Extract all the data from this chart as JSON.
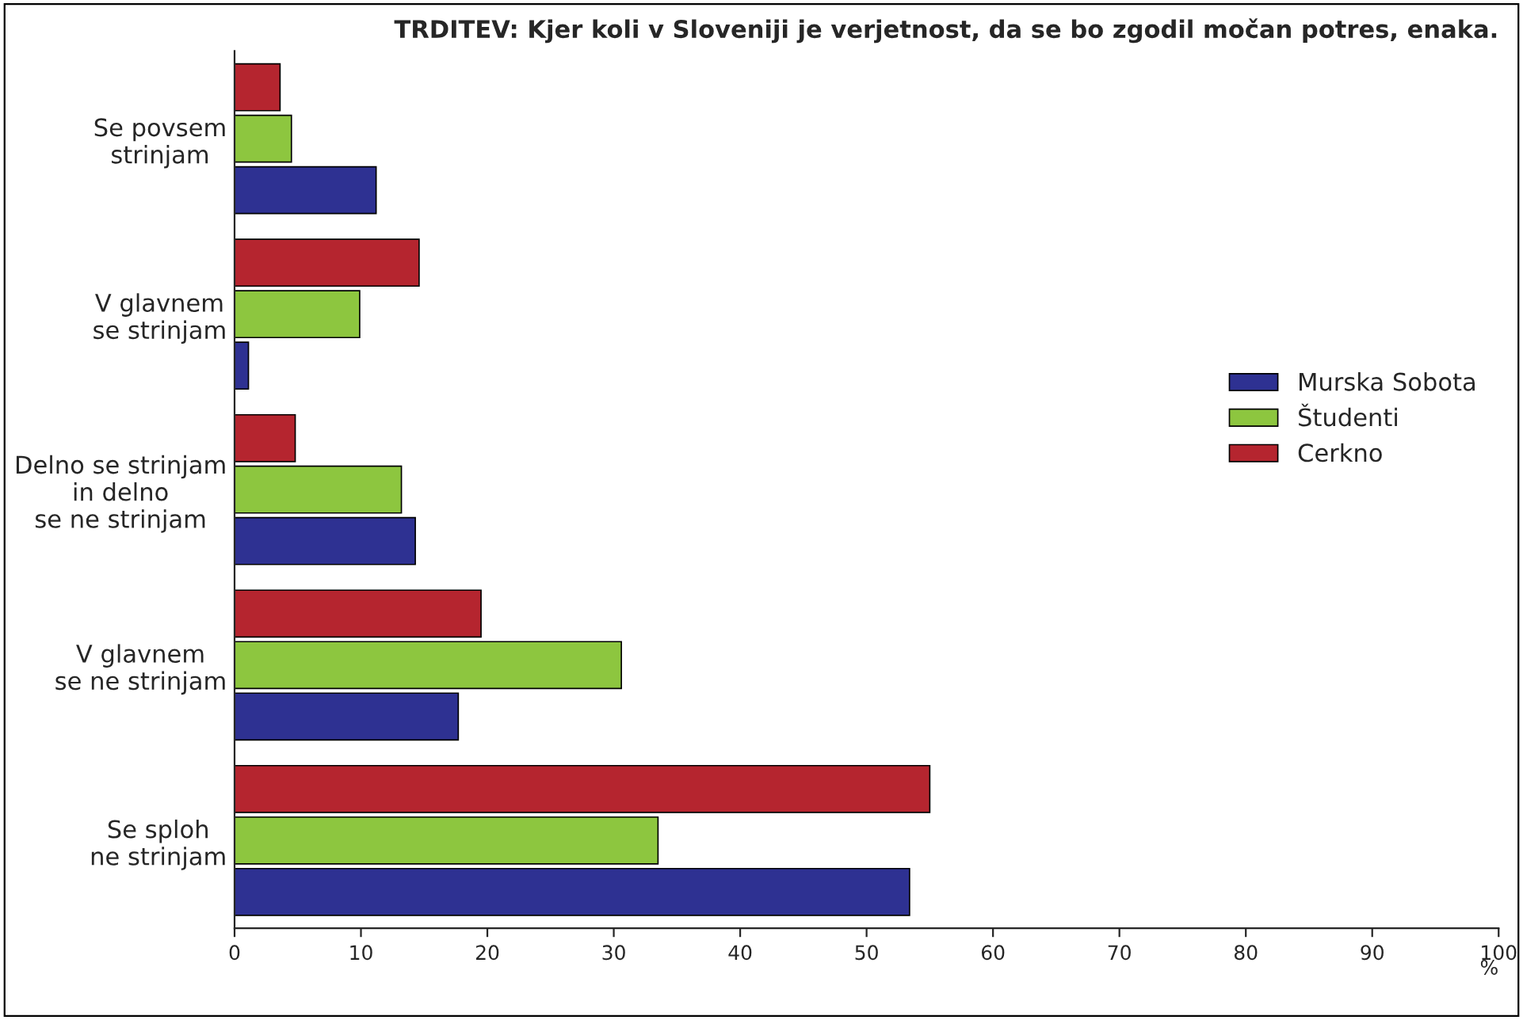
{
  "chart_data": {
    "type": "bar",
    "orientation": "horizontal",
    "title": "TRDITEV: Kjer koli v Sloveniji je verjetnost, da se bo zgodil močan potres, enaka.",
    "categories": [
      "Se povsem\nstrinjam",
      "V glavnem\nse strinjam",
      "Delno se strinjam\nin delno\nse ne strinjam",
      "V glavnem\nse ne strinjam",
      "Se sploh\nne strinjam"
    ],
    "series": [
      {
        "name": "Murska Sobota",
        "color": "#2e3192",
        "values": [
          11.2,
          1.1,
          14.3,
          17.7,
          53.4
        ]
      },
      {
        "name": "Študenti",
        "color": "#8dc63f",
        "values": [
          4.5,
          9.9,
          13.2,
          30.6,
          33.5
        ]
      },
      {
        "name": "Cerkno",
        "color": "#b5252f",
        "values": [
          3.6,
          14.6,
          4.8,
          19.5,
          55.0
        ]
      }
    ],
    "xlabel": "%",
    "xlim": [
      0,
      100
    ],
    "xticks": [
      0,
      10,
      20,
      30,
      40,
      50,
      60,
      70,
      80,
      90,
      100
    ],
    "grid": false,
    "legend": "right"
  }
}
